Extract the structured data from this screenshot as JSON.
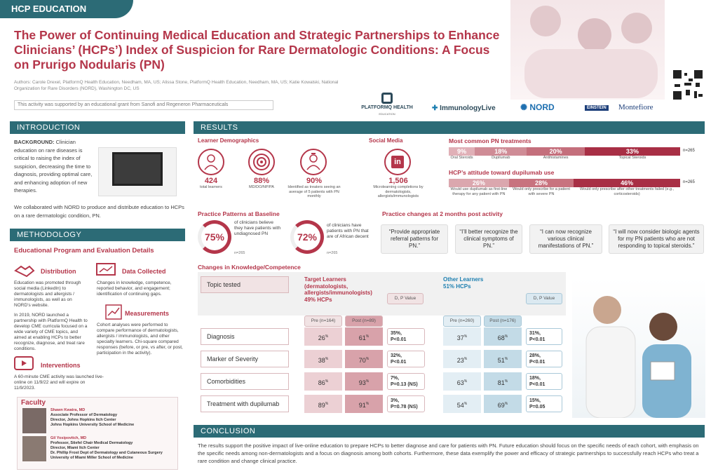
{
  "header": {
    "tag": "HCP EDUCATION",
    "title": "The Power of Continuing Medical Education and Strategic Partnerships to Enhance Clinicians’ (HCPs’) Index of Suspicion for Rare Dermatologic Conditions: A Focus on Prurigo Nodularis (PN)",
    "authors": "Authors: Carole Drexel, PlatformQ Health Education, Needham, MA, US; Alissa Stone, PlatformQ Health Education, Needham, MA, US; Katie Kowalski, National Organization for Rare Disorders (NORD), Washington DC, US",
    "grant": "This activity was supported by an educational grant from Sanofi and Regeneron Pharmaceuticals"
  },
  "logos": {
    "platformq": "PLATFORMQ HEALTH",
    "platformq_sub": "EDUCATION",
    "immunology": "ImmunologyLive",
    "nord": "NORD",
    "einstein": "EINSTEIN",
    "montefiore": "Montefiore"
  },
  "intro": {
    "heading": "INTRODUCTION",
    "bg_label": "BACKGROUND:",
    "bg_text": "Clinician education on rare diseases is critical to raising the index of suspicion, decreasing the time to diagnosis, providing optimal care, and enhancing adoption of new therapies.",
    "collab": "We collaborated with NORD to produce and distribute education to HCPs on a rare dermatologic condition, PN."
  },
  "methodology": {
    "heading": "METHODOLOGY",
    "sub": "Educational Program and Evaluation Details",
    "distribution": {
      "title": "Distribution",
      "text1": "Education was promoted through social media (LinkedIn) to dermatologists and allergists / immunologists, as well as on NORD’s website.",
      "text2": "In 2019, NORD launched a partnership with PlatformQ Health to develop CME curricula focused on a wide variety of CME topics, and aimed at enabling HCPs to better recognize, diagnose, and treat rare conditions."
    },
    "data": {
      "title": "Data Collected",
      "text": "Changes in knowledge, competence, reported behavior, and engagement; identification of continuing gaps."
    },
    "measurements": {
      "title": "Measurements",
      "text": "Cohort analyses were performed to compare performance of dermatologists, allergists / immunologists, and other specialty learners. Chi-square compared responses (before, or pre, vs after, or post, participation in the activity)."
    },
    "interventions": {
      "title": "Interventions",
      "text": "A 60-minute CME activity was launched live-online on 11/9/22 and will expire on 11/9/2023."
    }
  },
  "faculty": {
    "heading": "Faculty",
    "f1": {
      "name": "Shawn Kwatra, MD",
      "l1": "Associate Professor of Dermatology",
      "l2": "Director, Johns Hopkins Itch Center",
      "l3": "Johns Hopkins University School of Medicine"
    },
    "f2": {
      "name": "Gil Yosipovitch, MD",
      "l1": "Professor, Stiefel Chair Medical Dermatology",
      "l2": "Director, Miami Itch Center",
      "l3": "Dr. Phillip Frost Dept of Dermatology and Cutaneous Surgery",
      "l4": "University of Miami Miller School of Medicine"
    }
  },
  "results": {
    "heading": "RESULTS",
    "demo_title": "Learner Demographics",
    "demo": [
      {
        "value": "424",
        "label": "total learners"
      },
      {
        "value": "88%",
        "label": "MD/DO/NP/PA"
      },
      {
        "value": "90%",
        "label": "Identified as treaters seeing an average of 5 patients with PN monthly"
      }
    ],
    "social_title": "Social Media",
    "social_value": "1,506",
    "social_label": "Microlearning completions by dermatologists, allergists/immunologists",
    "treat_title": "Most common PN treatments",
    "treat_n": "n=265",
    "treat": [
      {
        "v": "9",
        "l": "Oral Steroids"
      },
      {
        "v": "18",
        "l": "Dupilumab"
      },
      {
        "v": "20",
        "l": "Antihistamines"
      },
      {
        "v": "33",
        "l": "Topical Steroids"
      }
    ],
    "dup_title": "HCP’s attitude toward dupilumab use",
    "dup_n": "n=265",
    "dup": [
      {
        "v": "26",
        "l": "Would use dupilumab as first-line therapy for any patient with PN"
      },
      {
        "v": "28",
        "l": "Would only prescribe for a patient with severe PN"
      },
      {
        "v": "46",
        "l": "Would only prescribe after other treatments failed (e.g., corticosteroids)"
      }
    ],
    "pp_title": "Practice Patterns at Baseline",
    "pp": [
      {
        "v": "75%",
        "t": "of clinicians believe they have patients with undiagnosed PN",
        "n": "n=265"
      },
      {
        "v": "72%",
        "t": "of clinicians have patients with PN that are of African decent",
        "n": "n=265"
      }
    ],
    "pc_title": "Practice changes at 2 months post activity",
    "quotes": [
      "“Provide appropriate referral patterns for PN.”",
      "“I’ll better recognize the clinical symptoms of PN.”",
      "“I can now recognize various clinical manifestations of PN.”",
      "“I will now consider biologic agents for my PN patients who are not responding to topical steroids.”"
    ],
    "kc_title": "Changes in Knowledge/Competence",
    "topic_hdr": "Topic tested",
    "target_hdr": "Target Learners",
    "target_sub": "(dermatologists, allergists/immunologists)",
    "target_pct": "49% HCPs",
    "other_hdr": "Other Learners",
    "other_pct": "51% HCPs",
    "dp": "D, P Value",
    "t_pre": "Pre",
    "t_pre_n": "(n=164)",
    "t_post": "Post",
    "t_post_n": "(n=89)",
    "o_pre": "Pre",
    "o_pre_n": "(n=260)",
    "o_post": "Post",
    "o_post_n": "(n=176)",
    "rows": [
      {
        "topic": "Diagnosis",
        "tpre": "26",
        "tpost": "61",
        "td": "35%,",
        "tp": "P<0.01",
        "opre": "37",
        "opost": "68",
        "od": "31%,",
        "op": "P<0.01"
      },
      {
        "topic": "Marker of Severity",
        "tpre": "38",
        "tpost": "70",
        "td": "32%,",
        "tp": "P<0.01",
        "opre": "23",
        "opost": "51",
        "od": "28%,",
        "op": "P<0.01"
      },
      {
        "topic": "Comorbidities",
        "tpre": "86",
        "tpost": "93",
        "td": "7%,",
        "tp": "P=0.13 (NS)",
        "opre": "63",
        "opost": "81",
        "od": "18%,",
        "op": "P<0.01"
      },
      {
        "topic": "Treatment with dupilumab",
        "tpre": "89",
        "tpost": "91",
        "td": "3%,",
        "tp": "P=0.78 (NS)",
        "opre": "54",
        "opost": "69",
        "od": "15%,",
        "op": "P=0.05"
      }
    ]
  },
  "conclusion": {
    "heading": "CONCLUSION",
    "text": "The results support the positive impact of live-online education to prepare HCPs to better diagnose and care for patients with PN. Future education should focus on the specific needs of each cohort, with emphasis on the specific needs among non-dermatologists and a focus on diagnosis among both cohorts. Furthermore, these data exemplify the power and efficacy of strategic partnerships to successfully reach HCPs who treat a rare condition and change clinical practice."
  },
  "colors": {
    "teal": "#2c6b76",
    "crimson": "#b4364a",
    "pink": "#e7c9cc",
    "blue": "#cfe3ee"
  }
}
